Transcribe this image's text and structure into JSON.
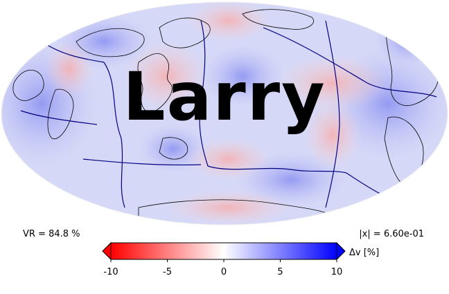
{
  "stats": {
    "variance_reduction": "VR = 84.8 %",
    "norm": "|x| = 6.60e-01"
  },
  "overlay_text": "Larry",
  "colorbar": {
    "label": "Δv [%]",
    "ticks": [
      "-10",
      "-5",
      "0",
      "5",
      "10"
    ],
    "tick_values": [
      -10,
      -5,
      0,
      5,
      10
    ],
    "range": [
      -10,
      10
    ],
    "low_color": "#ff0000",
    "mid_color": "#ffffff",
    "high_color": "#0000ff"
  },
  "map": {
    "projection": "mollweide",
    "plate_boundary_color": "#000080",
    "coastline_color": "#000000"
  }
}
